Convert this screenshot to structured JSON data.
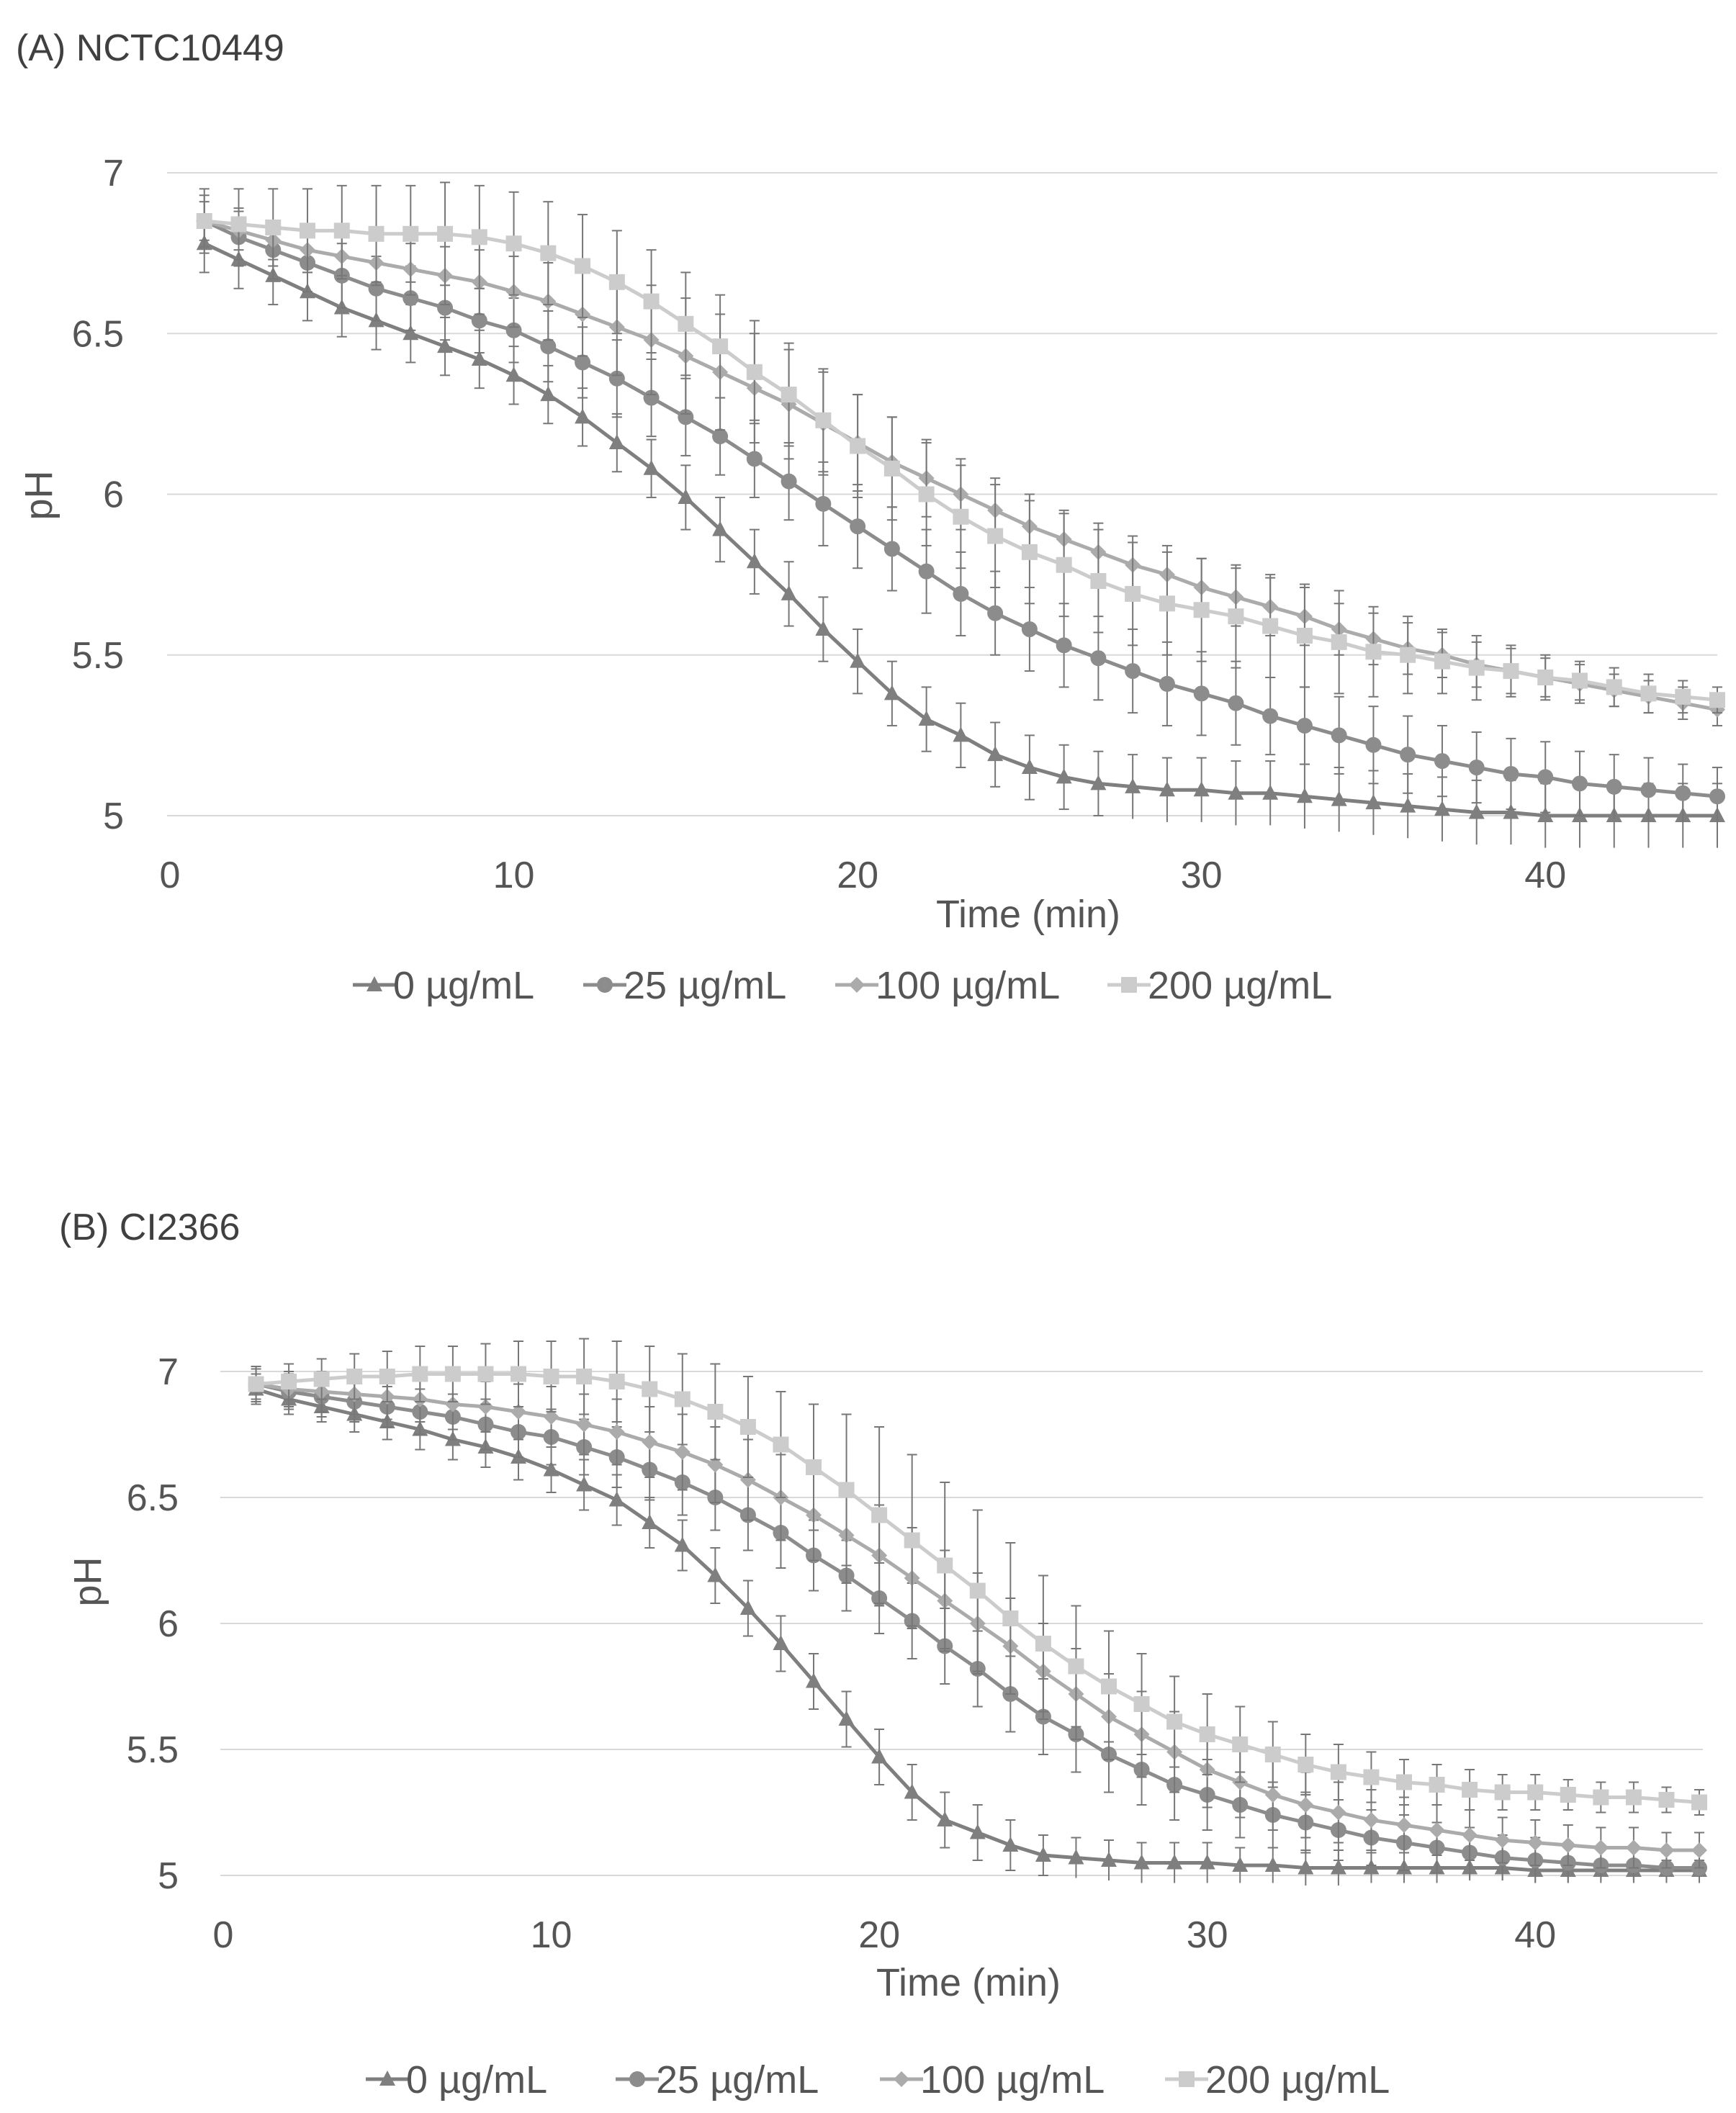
{
  "chart_data": [
    {
      "type": "line",
      "title": "(A) NCTC10449",
      "xlabel": "Time (min)",
      "ylabel": "pH",
      "xlim": [
        0,
        45
      ],
      "ylim": [
        5,
        7
      ],
      "xticks": [
        "0",
        "10",
        "20",
        "30",
        "40"
      ],
      "yticks": [
        "5",
        "5.5",
        "6",
        "6.5",
        "7"
      ],
      "grid": true,
      "legend_position": "bottom",
      "x": [
        1,
        2,
        3,
        4,
        5,
        6,
        7,
        8,
        9,
        10,
        11,
        12,
        13,
        14,
        15,
        16,
        17,
        18,
        19,
        20,
        21,
        22,
        23,
        24,
        25,
        26,
        27,
        28,
        29,
        30,
        31,
        32,
        33,
        34,
        35,
        36,
        37,
        38,
        39,
        40,
        41,
        42,
        43,
        44,
        45
      ],
      "series": [
        {
          "name": "0 µg/mL",
          "marker": "triangle",
          "color": "#7f7f7f",
          "values": [
            6.78,
            6.73,
            6.68,
            6.63,
            6.58,
            6.54,
            6.5,
            6.46,
            6.42,
            6.37,
            6.31,
            6.24,
            6.16,
            6.08,
            5.99,
            5.89,
            5.79,
            5.69,
            5.58,
            5.48,
            5.38,
            5.3,
            5.25,
            5.19,
            5.15,
            5.12,
            5.1,
            5.09,
            5.08,
            5.08,
            5.07,
            5.07,
            5.06,
            5.05,
            5.04,
            5.03,
            5.02,
            5.01,
            5.01,
            5.0,
            5.0,
            5.0,
            5.0,
            5.0,
            5.0
          ],
          "errors": [
            0.09,
            0.09,
            0.09,
            0.09,
            0.09,
            0.09,
            0.09,
            0.09,
            0.09,
            0.09,
            0.09,
            0.09,
            0.09,
            0.09,
            0.1,
            0.1,
            0.1,
            0.1,
            0.1,
            0.1,
            0.1,
            0.1,
            0.1,
            0.1,
            0.1,
            0.1,
            0.1,
            0.1,
            0.1,
            0.1,
            0.1,
            0.1,
            0.1,
            0.1,
            0.1,
            0.1,
            0.1,
            0.1,
            0.1,
            0.1,
            0.1,
            0.1,
            0.1,
            0.1,
            0.1
          ]
        },
        {
          "name": "25 µg/mL",
          "marker": "circle",
          "color": "#8c8c8c",
          "values": [
            6.85,
            6.8,
            6.76,
            6.72,
            6.68,
            6.64,
            6.61,
            6.58,
            6.54,
            6.51,
            6.46,
            6.41,
            6.36,
            6.3,
            6.24,
            6.18,
            6.11,
            6.04,
            5.97,
            5.9,
            5.83,
            5.76,
            5.69,
            5.63,
            5.58,
            5.53,
            5.49,
            5.45,
            5.41,
            5.38,
            5.35,
            5.31,
            5.28,
            5.25,
            5.22,
            5.19,
            5.17,
            5.15,
            5.13,
            5.12,
            5.1,
            5.09,
            5.08,
            5.07,
            5.06
          ],
          "errors": [
            0.08,
            0.09,
            0.09,
            0.09,
            0.1,
            0.1,
            0.1,
            0.1,
            0.1,
            0.1,
            0.11,
            0.11,
            0.12,
            0.12,
            0.12,
            0.12,
            0.12,
            0.12,
            0.13,
            0.13,
            0.13,
            0.13,
            0.13,
            0.13,
            0.13,
            0.13,
            0.13,
            0.13,
            0.13,
            0.13,
            0.13,
            0.12,
            0.12,
            0.12,
            0.12,
            0.12,
            0.11,
            0.11,
            0.11,
            0.11,
            0.1,
            0.1,
            0.1,
            0.09,
            0.09
          ]
        },
        {
          "name": "100 µg/mL",
          "marker": "diamond",
          "color": "#ababab",
          "values": [
            6.85,
            6.82,
            6.79,
            6.76,
            6.74,
            6.72,
            6.7,
            6.68,
            6.66,
            6.63,
            6.6,
            6.56,
            6.52,
            6.48,
            6.43,
            6.38,
            6.33,
            6.28,
            6.22,
            6.16,
            6.1,
            6.05,
            6.0,
            5.95,
            5.9,
            5.86,
            5.82,
            5.78,
            5.75,
            5.71,
            5.68,
            5.65,
            5.62,
            5.58,
            5.55,
            5.52,
            5.5,
            5.47,
            5.45,
            5.43,
            5.41,
            5.39,
            5.37,
            5.35,
            5.33
          ],
          "errors": [
            0.06,
            0.06,
            0.06,
            0.07,
            0.07,
            0.07,
            0.08,
            0.09,
            0.1,
            0.11,
            0.12,
            0.13,
            0.15,
            0.17,
            0.18,
            0.18,
            0.17,
            0.17,
            0.16,
            0.15,
            0.14,
            0.12,
            0.11,
            0.1,
            0.1,
            0.09,
            0.09,
            0.09,
            0.09,
            0.09,
            0.09,
            0.09,
            0.09,
            0.08,
            0.08,
            0.08,
            0.07,
            0.07,
            0.07,
            0.06,
            0.06,
            0.05,
            0.05,
            0.05,
            0.05
          ]
        },
        {
          "name": "200 µg/mL",
          "marker": "square",
          "color": "#cccccc",
          "values": [
            6.85,
            6.84,
            6.83,
            6.82,
            6.82,
            6.81,
            6.81,
            6.81,
            6.8,
            6.78,
            6.75,
            6.71,
            6.66,
            6.6,
            6.53,
            6.46,
            6.38,
            6.31,
            6.23,
            6.15,
            6.08,
            6.0,
            5.93,
            5.87,
            5.82,
            5.78,
            5.73,
            5.69,
            5.66,
            5.64,
            5.62,
            5.59,
            5.56,
            5.54,
            5.51,
            5.5,
            5.48,
            5.46,
            5.45,
            5.43,
            5.42,
            5.4,
            5.38,
            5.37,
            5.36
          ],
          "errors": [
            0.1,
            0.11,
            0.12,
            0.13,
            0.14,
            0.15,
            0.15,
            0.16,
            0.16,
            0.16,
            0.16,
            0.16,
            0.16,
            0.16,
            0.16,
            0.16,
            0.16,
            0.16,
            0.16,
            0.16,
            0.16,
            0.16,
            0.16,
            0.16,
            0.16,
            0.16,
            0.16,
            0.16,
            0.16,
            0.16,
            0.16,
            0.16,
            0.16,
            0.16,
            0.14,
            0.12,
            0.1,
            0.1,
            0.08,
            0.07,
            0.06,
            0.06,
            0.06,
            0.05,
            0.04
          ]
        }
      ]
    },
    {
      "type": "line",
      "title": "(B) CI2366",
      "xlabel": "Time (min)",
      "ylabel": "pH",
      "xlim": [
        0,
        45
      ],
      "ylim": [
        5,
        7
      ],
      "xticks": [
        "0",
        "10",
        "20",
        "30",
        "40"
      ],
      "yticks": [
        "5",
        "5.5",
        "6",
        "6.5",
        "7"
      ],
      "grid": true,
      "legend_position": "bottom",
      "x": [
        1,
        2,
        3,
        4,
        5,
        6,
        7,
        8,
        9,
        10,
        11,
        12,
        13,
        14,
        15,
        16,
        17,
        18,
        19,
        20,
        21,
        22,
        23,
        24,
        25,
        26,
        27,
        28,
        29,
        30,
        31,
        32,
        33,
        34,
        35,
        36,
        37,
        38,
        39,
        40,
        41,
        42,
        43,
        44,
        45
      ],
      "series": [
        {
          "name": "0 µg/mL",
          "marker": "triangle",
          "color": "#7f7f7f",
          "values": [
            6.93,
            6.89,
            6.86,
            6.83,
            6.8,
            6.77,
            6.73,
            6.7,
            6.66,
            6.61,
            6.55,
            6.49,
            6.4,
            6.31,
            6.19,
            6.06,
            5.92,
            5.77,
            5.62,
            5.47,
            5.33,
            5.22,
            5.17,
            5.12,
            5.08,
            5.07,
            5.06,
            5.05,
            5.05,
            5.05,
            5.04,
            5.04,
            5.03,
            5.03,
            5.03,
            5.03,
            5.03,
            5.03,
            5.03,
            5.02,
            5.02,
            5.02,
            5.02,
            5.02,
            5.02
          ],
          "errors": [
            0.06,
            0.06,
            0.06,
            0.07,
            0.07,
            0.08,
            0.08,
            0.08,
            0.09,
            0.09,
            0.1,
            0.1,
            0.1,
            0.1,
            0.11,
            0.11,
            0.11,
            0.11,
            0.11,
            0.11,
            0.11,
            0.11,
            0.11,
            0.1,
            0.08,
            0.08,
            0.08,
            0.08,
            0.08,
            0.08,
            0.07,
            0.07,
            0.07,
            0.07,
            0.06,
            0.06,
            0.06,
            0.05,
            0.05,
            0.05,
            0.05,
            0.04,
            0.04,
            0.04,
            0.04
          ]
        },
        {
          "name": "25 µg/mL",
          "marker": "circle",
          "color": "#8c8c8c",
          "values": [
            6.95,
            6.92,
            6.9,
            6.88,
            6.86,
            6.84,
            6.82,
            6.79,
            6.76,
            6.74,
            6.7,
            6.66,
            6.61,
            6.56,
            6.5,
            6.43,
            6.36,
            6.27,
            6.19,
            6.1,
            6.01,
            5.91,
            5.82,
            5.72,
            5.63,
            5.56,
            5.48,
            5.42,
            5.36,
            5.32,
            5.28,
            5.24,
            5.21,
            5.18,
            5.15,
            5.13,
            5.11,
            5.09,
            5.07,
            5.06,
            5.05,
            5.04,
            5.04,
            5.03,
            5.03
          ],
          "errors": [
            0.07,
            0.07,
            0.08,
            0.08,
            0.08,
            0.09,
            0.09,
            0.1,
            0.1,
            0.11,
            0.11,
            0.12,
            0.12,
            0.13,
            0.13,
            0.14,
            0.14,
            0.14,
            0.14,
            0.14,
            0.15,
            0.15,
            0.15,
            0.15,
            0.15,
            0.15,
            0.15,
            0.14,
            0.14,
            0.14,
            0.13,
            0.13,
            0.12,
            0.12,
            0.11,
            0.11,
            0.1,
            0.1,
            0.09,
            0.09,
            0.08,
            0.07,
            0.07,
            0.06,
            0.06
          ]
        },
        {
          "name": "100 µg/mL",
          "marker": "diamond",
          "color": "#ababab",
          "values": [
            6.95,
            6.93,
            6.92,
            6.91,
            6.9,
            6.89,
            6.87,
            6.86,
            6.84,
            6.82,
            6.79,
            6.76,
            6.72,
            6.68,
            6.63,
            6.57,
            6.5,
            6.43,
            6.35,
            6.27,
            6.18,
            6.09,
            6.0,
            5.91,
            5.81,
            5.72,
            5.63,
            5.56,
            5.49,
            5.42,
            5.37,
            5.32,
            5.28,
            5.25,
            5.22,
            5.2,
            5.18,
            5.16,
            5.14,
            5.13,
            5.12,
            5.11,
            5.11,
            5.1,
            5.1
          ],
          "errors": [
            0.07,
            0.07,
            0.08,
            0.08,
            0.09,
            0.09,
            0.1,
            0.1,
            0.11,
            0.12,
            0.12,
            0.13,
            0.14,
            0.15,
            0.15,
            0.16,
            0.17,
            0.18,
            0.19,
            0.2,
            0.2,
            0.2,
            0.2,
            0.19,
            0.19,
            0.18,
            0.17,
            0.17,
            0.16,
            0.15,
            0.14,
            0.14,
            0.13,
            0.12,
            0.12,
            0.11,
            0.1,
            0.1,
            0.09,
            0.09,
            0.08,
            0.08,
            0.08,
            0.07,
            0.07
          ]
        },
        {
          "name": "200 µg/mL",
          "marker": "square",
          "color": "#cccccc",
          "values": [
            6.95,
            6.96,
            6.97,
            6.98,
            6.98,
            6.99,
            6.99,
            6.99,
            6.99,
            6.98,
            6.98,
            6.96,
            6.93,
            6.89,
            6.84,
            6.78,
            6.71,
            6.62,
            6.53,
            6.43,
            6.33,
            6.23,
            6.13,
            6.02,
            5.92,
            5.83,
            5.75,
            5.68,
            5.61,
            5.56,
            5.52,
            5.48,
            5.44,
            5.41,
            5.39,
            5.37,
            5.36,
            5.34,
            5.33,
            5.33,
            5.32,
            5.31,
            5.31,
            5.3,
            5.29
          ],
          "errors": [
            0.06,
            0.07,
            0.08,
            0.09,
            0.1,
            0.11,
            0.11,
            0.12,
            0.13,
            0.14,
            0.15,
            0.16,
            0.17,
            0.18,
            0.19,
            0.2,
            0.21,
            0.25,
            0.3,
            0.35,
            0.34,
            0.33,
            0.32,
            0.3,
            0.27,
            0.24,
            0.22,
            0.2,
            0.18,
            0.16,
            0.15,
            0.13,
            0.12,
            0.11,
            0.1,
            0.09,
            0.08,
            0.08,
            0.07,
            0.07,
            0.06,
            0.06,
            0.06,
            0.05,
            0.05
          ]
        }
      ]
    }
  ]
}
